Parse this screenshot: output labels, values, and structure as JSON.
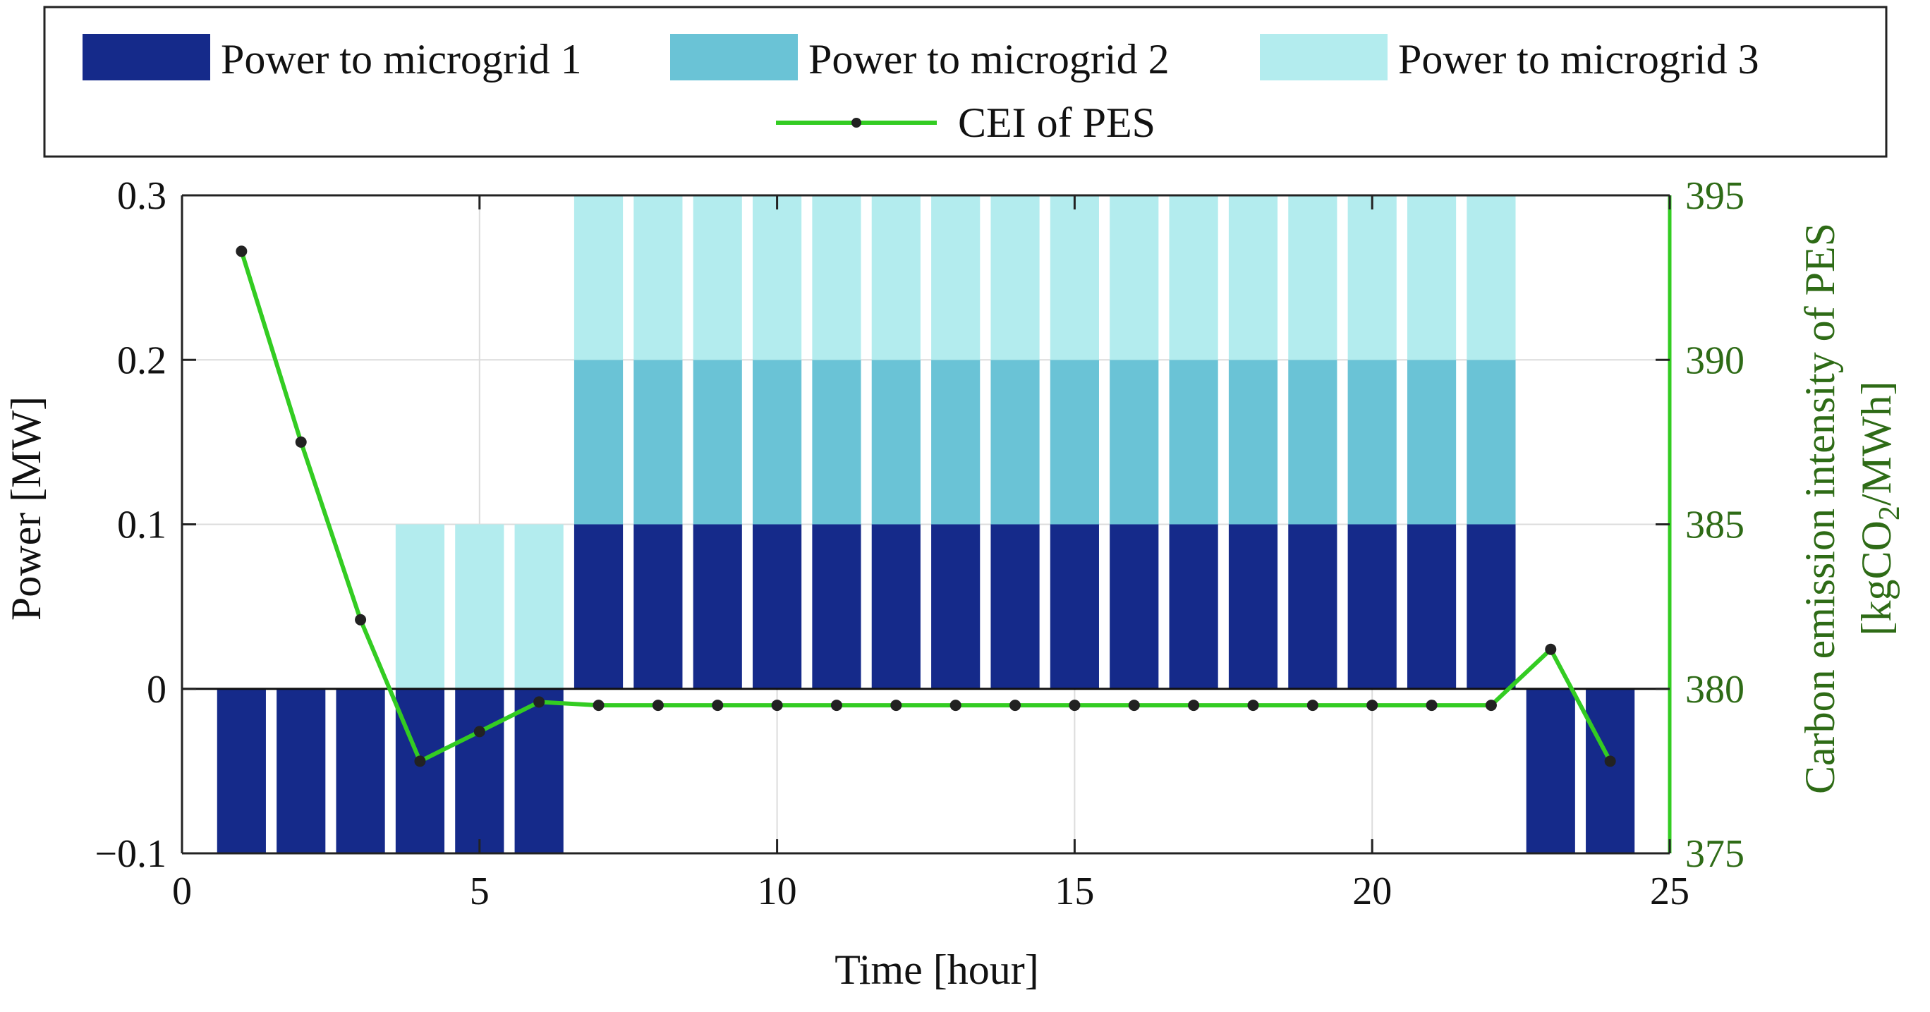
{
  "chart_data": {
    "type": "bar",
    "title": "",
    "xlabel": "Time [hour]",
    "ylabel": "Power [MW]",
    "y2label": [
      "Carbon emission intensity of  PES",
      "[kgCO",
      "2",
      "/MWh]"
    ],
    "xlim": [
      0,
      25
    ],
    "ylim": [
      -0.1,
      0.3
    ],
    "y2lim": [
      375,
      395
    ],
    "xticks": [
      0,
      5,
      10,
      15,
      20,
      25
    ],
    "yticks": [
      -0.1,
      0,
      0.1,
      0.2,
      0.3
    ],
    "ytick_labels": [
      "−0.1",
      "0",
      "0.1",
      "0.2",
      "0.3"
    ],
    "y2ticks": [
      375,
      380,
      385,
      390,
      395
    ],
    "grid": true,
    "x": [
      1,
      2,
      3,
      4,
      5,
      6,
      7,
      8,
      9,
      10,
      11,
      12,
      13,
      14,
      15,
      16,
      17,
      18,
      19,
      20,
      21,
      22,
      23,
      24
    ],
    "series": [
      {
        "name": "Power to microgrid 1",
        "color": "#152a8a",
        "values": [
          -0.1,
          -0.1,
          -0.1,
          -0.1,
          -0.1,
          -0.1,
          0.1,
          0.1,
          0.1,
          0.1,
          0.1,
          0.1,
          0.1,
          0.1,
          0.1,
          0.1,
          0.1,
          0.1,
          0.1,
          0.1,
          0.1,
          0.1,
          -0.1,
          -0.1
        ]
      },
      {
        "name": "Power to microgrid 2",
        "color": "#6ac3d6",
        "values": [
          0,
          0,
          0,
          0,
          0,
          0,
          0.1,
          0.1,
          0.1,
          0.1,
          0.1,
          0.1,
          0.1,
          0.1,
          0.1,
          0.1,
          0.1,
          0.1,
          0.1,
          0.1,
          0.1,
          0.1,
          0,
          0
        ]
      },
      {
        "name": "Power to microgrid 3",
        "color": "#b3ecee",
        "values": [
          0,
          0,
          0,
          0.1,
          0.1,
          0.1,
          0.1,
          0.1,
          0.1,
          0.1,
          0.1,
          0.1,
          0.1,
          0.1,
          0.1,
          0.1,
          0.1,
          0.1,
          0.1,
          0.1,
          0.1,
          0.1,
          0,
          0
        ]
      }
    ],
    "line_series": {
      "name": "CEI of PES",
      "axis": "right",
      "color": "#33cc22",
      "marker_color": "#222222",
      "values": [
        393.3,
        387.5,
        382.1,
        377.8,
        378.7,
        379.6,
        379.5,
        379.5,
        379.5,
        379.5,
        379.5,
        379.5,
        379.5,
        379.5,
        379.5,
        379.5,
        379.5,
        379.5,
        379.5,
        379.5,
        379.5,
        379.5,
        381.2,
        377.8
      ]
    },
    "legend": {
      "location": "top",
      "entries": [
        "Power to microgrid 1",
        "Power to microgrid 2",
        "Power to microgrid 3",
        "CEI of PES"
      ]
    },
    "right_axis_color": "#33cc22",
    "right_axis_text_color": "#2e6b16"
  }
}
